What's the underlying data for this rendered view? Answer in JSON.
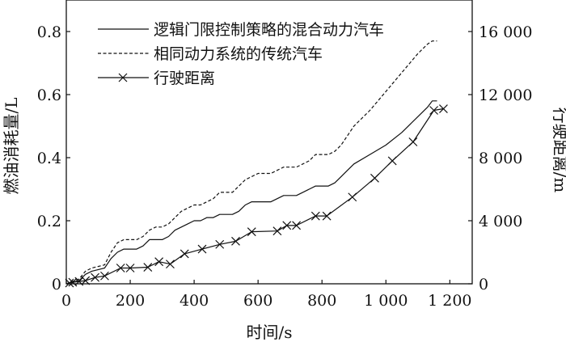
{
  "chart_data": {
    "type": "line",
    "xlabel": "时间/s",
    "ylabel_left": "燃油消耗量/L",
    "ylabel_right": "行驶距离/m",
    "x_ticks": [
      "0",
      "200",
      "400",
      "600",
      "800",
      "1 000",
      "1 200"
    ],
    "x_tick_values": [
      0,
      200,
      400,
      600,
      800,
      1000,
      1200
    ],
    "y_left_ticks": [
      "0",
      "0.2",
      "0.4",
      "0.6",
      "0.8"
    ],
    "y_left_tick_values": [
      0,
      0.2,
      0.4,
      0.6,
      0.8
    ],
    "y_right_ticks": [
      "0",
      "4 000",
      "8 000",
      "12 000",
      "16 000"
    ],
    "y_right_tick_values": [
      0,
      4000,
      8000,
      12000,
      16000
    ],
    "xlim": [
      0,
      1270
    ],
    "ylim_left": [
      0,
      0.9
    ],
    "ylim_right": [
      0,
      18000
    ],
    "legend_position": "top-left",
    "series": [
      {
        "name": "逻辑门限控制策略的混合动力汽车",
        "axis": "left",
        "style": "solid",
        "x": [
          0,
          10,
          40,
          60,
          80,
          120,
          140,
          160,
          180,
          200,
          220,
          240,
          260,
          280,
          300,
          320,
          340,
          360,
          380,
          400,
          420,
          440,
          460,
          480,
          500,
          520,
          540,
          560,
          580,
          600,
          620,
          640,
          660,
          680,
          700,
          720,
          740,
          760,
          780,
          800,
          820,
          840,
          860,
          880,
          900,
          950,
          1000,
          1050,
          1100,
          1130,
          1145,
          1160
        ],
        "y": [
          0,
          0.003,
          0.01,
          0.03,
          0.04,
          0.05,
          0.08,
          0.1,
          0.11,
          0.11,
          0.11,
          0.12,
          0.14,
          0.14,
          0.14,
          0.15,
          0.17,
          0.18,
          0.19,
          0.2,
          0.2,
          0.21,
          0.21,
          0.22,
          0.22,
          0.22,
          0.23,
          0.25,
          0.26,
          0.26,
          0.26,
          0.26,
          0.27,
          0.28,
          0.28,
          0.28,
          0.29,
          0.3,
          0.31,
          0.31,
          0.31,
          0.32,
          0.34,
          0.36,
          0.38,
          0.41,
          0.44,
          0.48,
          0.53,
          0.56,
          0.58,
          0.58
        ]
      },
      {
        "name": "相同动力系统的传统汽车",
        "axis": "left",
        "style": "dashed",
        "x": [
          0,
          10,
          40,
          60,
          80,
          120,
          140,
          160,
          180,
          200,
          220,
          240,
          260,
          280,
          300,
          320,
          340,
          360,
          380,
          400,
          420,
          440,
          460,
          480,
          500,
          520,
          540,
          560,
          580,
          600,
          620,
          640,
          660,
          680,
          700,
          720,
          740,
          760,
          780,
          800,
          820,
          840,
          860,
          880,
          900,
          950,
          1000,
          1050,
          1100,
          1130,
          1145,
          1160
        ],
        "y": [
          0,
          0.004,
          0.015,
          0.04,
          0.05,
          0.06,
          0.1,
          0.13,
          0.14,
          0.14,
          0.14,
          0.15,
          0.17,
          0.18,
          0.18,
          0.19,
          0.21,
          0.23,
          0.24,
          0.25,
          0.25,
          0.26,
          0.27,
          0.29,
          0.29,
          0.29,
          0.31,
          0.33,
          0.34,
          0.35,
          0.35,
          0.35,
          0.36,
          0.37,
          0.37,
          0.37,
          0.38,
          0.39,
          0.41,
          0.41,
          0.41,
          0.42,
          0.44,
          0.47,
          0.5,
          0.55,
          0.61,
          0.67,
          0.73,
          0.76,
          0.77,
          0.77
        ]
      },
      {
        "name": "行驶距离",
        "axis": "right",
        "style": "solid-x-marker",
        "x": [
          0,
          10,
          20,
          40,
          60,
          90,
          120,
          170,
          200,
          255,
          290,
          325,
          370,
          425,
          480,
          530,
          580,
          660,
          690,
          720,
          780,
          815,
          895,
          965,
          1020,
          1085,
          1150,
          1180
        ],
        "y": [
          0,
          50,
          100,
          150,
          200,
          400,
          500,
          1000,
          1000,
          1050,
          1400,
          1250,
          1900,
          2200,
          2500,
          2700,
          3300,
          3350,
          3700,
          3700,
          4300,
          4300,
          5500,
          6700,
          7800,
          9000,
          11000,
          11100
        ]
      }
    ]
  }
}
